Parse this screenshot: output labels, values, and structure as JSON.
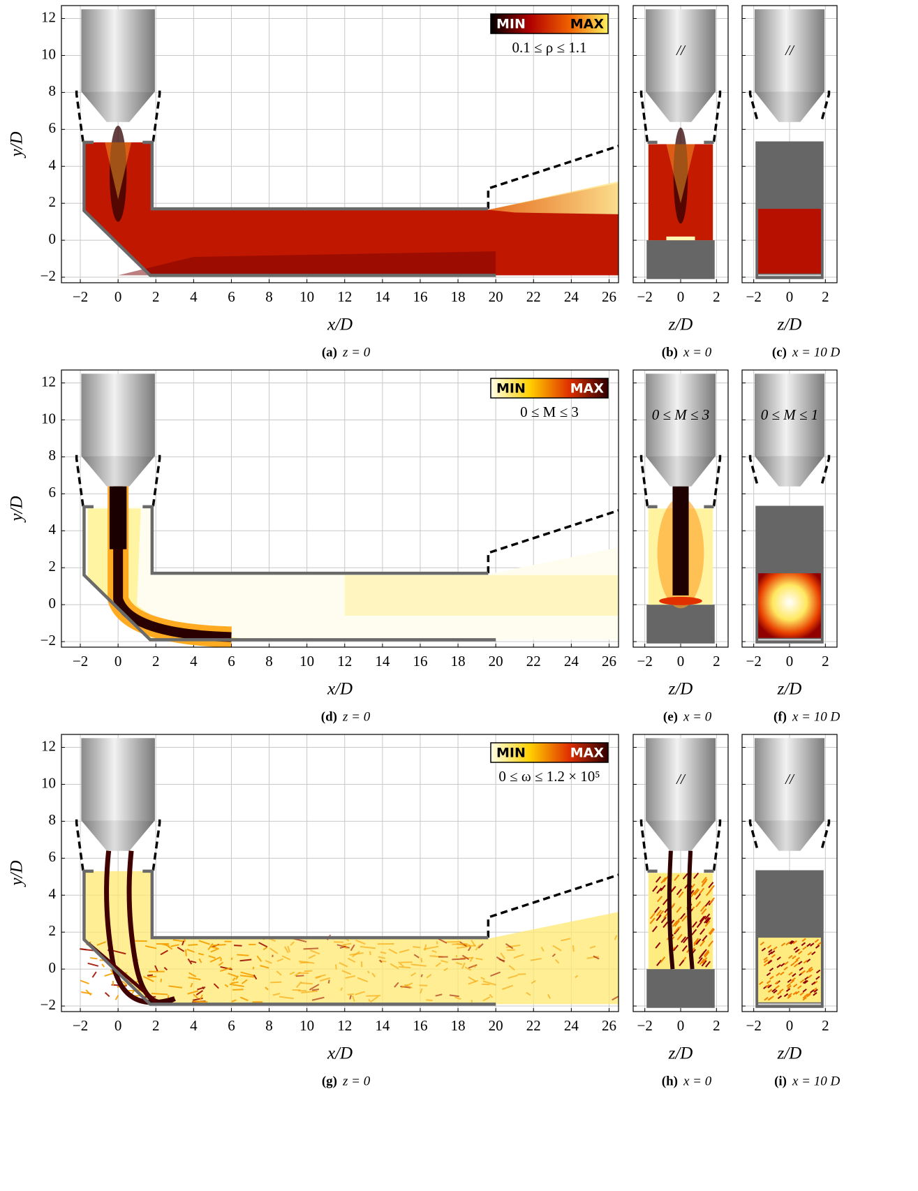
{
  "chart_data": [
    {
      "type": "side",
      "style": "density",
      "xlabel": "x/D",
      "ylabel": "y/D",
      "caption_tag": "(a)",
      "caption": "z = 0",
      "xlim": [
        -3,
        26.5
      ],
      "ylim": [
        -2.3,
        12.7
      ],
      "xticks": [
        {
          "value": -2,
          "label": "−2"
        },
        0,
        2,
        4,
        6,
        8,
        10,
        12,
        14,
        16,
        18,
        20,
        22,
        24,
        26
      ],
      "yticks": [
        {
          "value": -2,
          "label": "−2"
        },
        0,
        2,
        4,
        6,
        8,
        10,
        12
      ],
      "colorbar": {
        "min_label": "MIN",
        "max_label": "MAX",
        "range": "0.1 ≤ ρ ≤ 1.1",
        "colormap": [
          "#000000",
          "#b00000",
          "#f06000",
          "#fff060"
        ]
      }
    },
    {
      "type": "front",
      "style": "density",
      "xlabel": "z/D",
      "caption_tag": "(b)",
      "caption": "x = 0",
      "note": "//",
      "xlim": [
        -2.65,
        2.65
      ],
      "ylim": [
        -2.3,
        12.7
      ],
      "xticks": [
        {
          "value": -2,
          "label": "−2"
        },
        0,
        2
      ],
      "yticks": [
        -2,
        0,
        2,
        4,
        6,
        8,
        10,
        12
      ]
    },
    {
      "type": "cut",
      "style": "density",
      "xlabel": "z/D",
      "caption_tag": "(c)",
      "caption": "x = 10 D",
      "note": "//",
      "xlim": [
        -2.65,
        2.65
      ],
      "ylim": [
        -2.3,
        12.7
      ],
      "xticks": [
        {
          "value": -2,
          "label": "−2"
        },
        0,
        2
      ],
      "yticks": [
        -2,
        0,
        2,
        4,
        6,
        8,
        10,
        12
      ]
    },
    {
      "type": "side",
      "style": "mach",
      "xlabel": "x/D",
      "ylabel": "y/D",
      "caption_tag": "(d)",
      "caption": "z = 0",
      "xlim": [
        -3,
        26.5
      ],
      "ylim": [
        -2.3,
        12.7
      ],
      "xticks": [
        {
          "value": -2,
          "label": "−2"
        },
        0,
        2,
        4,
        6,
        8,
        10,
        12,
        14,
        16,
        18,
        20,
        22,
        24,
        26
      ],
      "yticks": [
        {
          "value": -2,
          "label": "−2"
        },
        0,
        2,
        4,
        6,
        8,
        10,
        12
      ],
      "colorbar": {
        "min_label": "MIN",
        "max_label": "MAX",
        "range": "0 ≤ M ≤ 3",
        "colormap": [
          "#ffffe8",
          "#ffd000",
          "#e03000",
          "#300000"
        ]
      }
    },
    {
      "type": "front",
      "style": "mach",
      "xlabel": "z/D",
      "caption_tag": "(e)",
      "caption": "x = 0",
      "note": "0 ≤ M ≤ 3",
      "xlim": [
        -2.65,
        2.65
      ],
      "ylim": [
        -2.3,
        12.7
      ],
      "xticks": [
        {
          "value": -2,
          "label": "−2"
        },
        0,
        2
      ],
      "yticks": [
        -2,
        0,
        2,
        4,
        6,
        8,
        10,
        12
      ]
    },
    {
      "type": "cut",
      "style": "mach",
      "xlabel": "z/D",
      "caption_tag": "(f)",
      "caption": "x = 10 D",
      "note": "0 ≤ M ≤ 1",
      "xlim": [
        -2.65,
        2.65
      ],
      "ylim": [
        -2.3,
        12.7
      ],
      "xticks": [
        {
          "value": -2,
          "label": "−2"
        },
        0,
        2
      ],
      "yticks": [
        -2,
        0,
        2,
        4,
        6,
        8,
        10,
        12
      ]
    },
    {
      "type": "side",
      "style": "vorticity",
      "xlabel": "x/D",
      "ylabel": "y/D",
      "caption_tag": "(g)",
      "caption": "z = 0",
      "xlim": [
        -3,
        26.5
      ],
      "ylim": [
        -2.3,
        12.7
      ],
      "xticks": [
        {
          "value": -2,
          "label": "−2"
        },
        0,
        2,
        4,
        6,
        8,
        10,
        12,
        14,
        16,
        18,
        20,
        22,
        24,
        26
      ],
      "yticks": [
        {
          "value": -2,
          "label": "−2"
        },
        0,
        2,
        4,
        6,
        8,
        10,
        12
      ],
      "colorbar": {
        "min_label": "MIN",
        "max_label": "MAX",
        "range": "0 ≤ ω ≤ 1.2 × 10⁵",
        "colormap": [
          "#ffffe8",
          "#ffd000",
          "#e03000",
          "#300000"
        ]
      }
    },
    {
      "type": "front",
      "style": "vorticity",
      "xlabel": "z/D",
      "caption_tag": "(h)",
      "caption": "x = 0",
      "note": "//",
      "xlim": [
        -2.65,
        2.65
      ],
      "ylim": [
        -2.3,
        12.7
      ],
      "xticks": [
        {
          "value": -2,
          "label": "−2"
        },
        0,
        2
      ],
      "yticks": [
        -2,
        0,
        2,
        4,
        6,
        8,
        10,
        12
      ]
    },
    {
      "type": "cut",
      "style": "vorticity",
      "xlabel": "z/D",
      "caption_tag": "(i)",
      "caption": "x = 10 D",
      "note": "//",
      "xlim": [
        -2.65,
        2.65
      ],
      "ylim": [
        -2.3,
        12.7
      ],
      "xticks": [
        {
          "value": -2,
          "label": "−2"
        },
        0,
        2
      ],
      "yticks": [
        -2,
        0,
        2,
        4,
        6,
        8,
        10,
        12
      ]
    }
  ]
}
